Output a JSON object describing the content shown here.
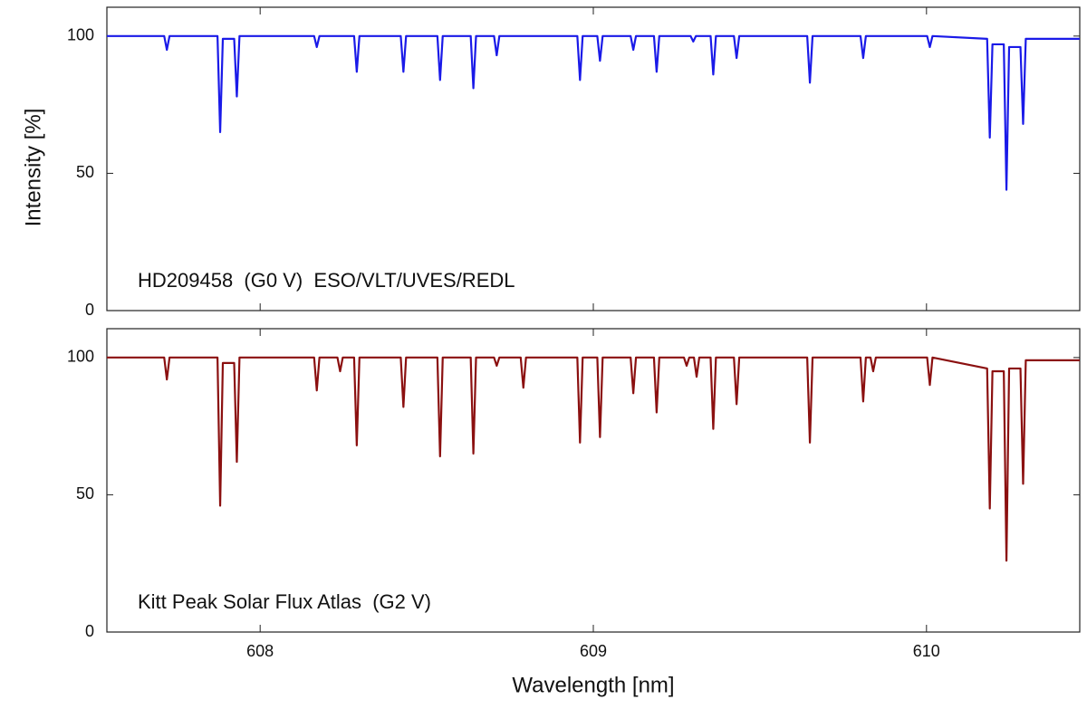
{
  "chart_data": [
    {
      "type": "line",
      "annotation": "HD209458  (G0 V)  ESO/VLT/UVES/REDL",
      "ylabel": "Intensity [%]",
      "color": "#1a1ae8",
      "xlim": [
        607.54,
        610.46
      ],
      "xticks": [
        608,
        609,
        610
      ],
      "ylim": [
        0,
        110.5
      ],
      "yticks": [
        0,
        50,
        100
      ],
      "x": [
        607.54,
        607.712,
        607.72,
        607.728,
        607.872,
        607.88,
        607.888,
        607.922,
        607.93,
        607.938,
        608.162,
        608.17,
        608.178,
        608.282,
        608.29,
        608.298,
        608.422,
        608.43,
        608.438,
        608.532,
        608.54,
        608.548,
        608.632,
        608.64,
        608.648,
        608.702,
        608.71,
        608.718,
        608.952,
        608.96,
        608.968,
        609.012,
        609.02,
        609.028,
        609.112,
        609.12,
        609.128,
        609.182,
        609.19,
        609.198,
        609.292,
        609.3,
        609.308,
        609.352,
        609.36,
        609.368,
        609.422,
        609.43,
        609.438,
        609.642,
        609.65,
        609.658,
        609.802,
        609.81,
        609.818,
        610.002,
        610.01,
        610.018,
        610.182,
        610.19,
        610.198,
        610.232,
        610.24,
        610.248,
        610.282,
        610.29,
        610.298,
        610.46
      ],
      "values": [
        100,
        100,
        95,
        100,
        100,
        65,
        99,
        99,
        78,
        100,
        100,
        96,
        100,
        100,
        87,
        100,
        100,
        87,
        100,
        100,
        84,
        100,
        100,
        81,
        100,
        100,
        93,
        100,
        100,
        84,
        100,
        100,
        91,
        100,
        100,
        95,
        100,
        100,
        87,
        100,
        100,
        98,
        100,
        100,
        86,
        100,
        100,
        92,
        100,
        100,
        83,
        100,
        100,
        92,
        100,
        100,
        96,
        100,
        99,
        63,
        97,
        97,
        44,
        96,
        96,
        68,
        99,
        99
      ]
    },
    {
      "type": "line",
      "annotation": "Kitt Peak Solar Flux Atlas  (G2 V)",
      "xlabel": "Wavelength [nm]",
      "color": "#8b1010",
      "xlim": [
        607.54,
        610.46
      ],
      "xticks": [
        608,
        609,
        610
      ],
      "ylim": [
        0,
        110.5
      ],
      "yticks": [
        0,
        50,
        100
      ],
      "x": [
        607.54,
        607.712,
        607.72,
        607.728,
        607.872,
        607.88,
        607.888,
        607.922,
        607.93,
        607.938,
        608.162,
        608.17,
        608.178,
        608.232,
        608.24,
        608.248,
        608.282,
        608.29,
        608.298,
        608.422,
        608.43,
        608.438,
        608.532,
        608.54,
        608.548,
        608.632,
        608.64,
        608.648,
        608.702,
        608.71,
        608.718,
        608.782,
        608.79,
        608.798,
        608.952,
        608.96,
        608.968,
        609.012,
        609.02,
        609.028,
        609.112,
        609.12,
        609.128,
        609.182,
        609.19,
        609.198,
        609.272,
        609.28,
        609.288,
        609.302,
        609.31,
        609.318,
        609.352,
        609.36,
        609.368,
        609.422,
        609.43,
        609.438,
        609.642,
        609.65,
        609.658,
        609.802,
        609.81,
        609.818,
        609.832,
        609.84,
        609.848,
        610.002,
        610.01,
        610.018,
        610.182,
        610.19,
        610.198,
        610.232,
        610.24,
        610.248,
        610.282,
        610.29,
        610.298,
        610.46
      ],
      "values": [
        100,
        100,
        92,
        100,
        100,
        46,
        98,
        98,
        62,
        100,
        100,
        88,
        100,
        100,
        95,
        100,
        100,
        68,
        100,
        100,
        82,
        100,
        100,
        64,
        100,
        100,
        65,
        100,
        100,
        97,
        100,
        100,
        89,
        100,
        100,
        69,
        100,
        100,
        71,
        100,
        100,
        87,
        100,
        100,
        80,
        100,
        100,
        97,
        100,
        100,
        93,
        100,
        100,
        74,
        100,
        100,
        83,
        100,
        100,
        69,
        100,
        100,
        84,
        100,
        100,
        95,
        100,
        100,
        90,
        100,
        96,
        45,
        95,
        95,
        26,
        96,
        96,
        54,
        99,
        99
      ]
    }
  ]
}
